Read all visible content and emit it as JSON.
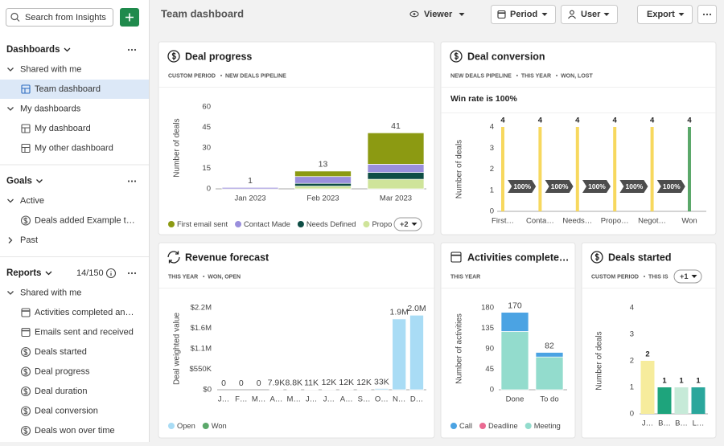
{
  "sidebar": {
    "search": "Search from Insights",
    "sections": [
      {
        "title": "Dashboards",
        "groups": [
          {
            "label": "Shared with me",
            "items": [
              "Team dashboard"
            ]
          },
          {
            "label": "My dashboards",
            "items": [
              "My dashboard",
              "My other dashboard"
            ]
          }
        ]
      },
      {
        "title": "Goals",
        "groups": [
          {
            "label": "Active",
            "items": [
              "Deals added Example t…"
            ]
          },
          {
            "label": "Past",
            "items": []
          }
        ]
      },
      {
        "title": "Reports",
        "count": "14/150",
        "groups": [
          {
            "label": "Shared with me",
            "items": [
              "Activities completed an…",
              "Emails sent and received",
              "Deals started",
              "Deal progress",
              "Deal duration",
              "Deal conversion",
              "Deals won over time"
            ]
          }
        ]
      }
    ]
  },
  "header": {
    "title": "Team dashboard",
    "view": "Viewer",
    "buttons": [
      "Period",
      "User",
      "Export"
    ]
  },
  "chart_data": [
    {
      "type": "bar",
      "title": "Deal progress",
      "subtitle": [
        "CUSTOM PERIOD",
        "NEW DEALS PIPELINE"
      ],
      "y_label": "Number of deals",
      "categories": [
        "Jan 2023",
        "Feb 2023",
        "Mar 2023"
      ],
      "series": [
        {
          "name": "First email sent",
          "color": "#8c9a12",
          "values": [
            0,
            4,
            23
          ]
        },
        {
          "name": "Contact Made",
          "color": "#9a8fdc",
          "values": [
            1,
            5,
            6
          ]
        },
        {
          "name": "Needs Defined",
          "color": "#0e4d45",
          "values": [
            0,
            2,
            5
          ]
        },
        {
          "name": "Propo",
          "color": "#cfe49a",
          "values": [
            0,
            2,
            7
          ]
        }
      ],
      "totals": [
        1,
        13,
        41
      ],
      "ylim": [
        0,
        60
      ],
      "yticks": [
        0,
        15,
        30,
        45,
        60
      ],
      "legend_more": "+2"
    },
    {
      "type": "bar",
      "title": "Deal conversion",
      "subtitle": [
        "NEW DEALS PIPELINE",
        "THIS YEAR",
        "WON, LOST"
      ],
      "note": "Win rate is 100%",
      "y_label": "Number of deals",
      "categories": [
        "First…",
        "Conta…",
        "Needs…",
        "Propo…",
        "Negot…",
        "Won"
      ],
      "values": [
        4,
        4,
        4,
        4,
        4,
        4
      ],
      "colors": [
        "#f7d85e",
        "#f7d85e",
        "#f7d85e",
        "#f7d85e",
        "#f7d85e",
        "#5ba86a"
      ],
      "conversion_labels": [
        "100%",
        "100%",
        "100%",
        "100%",
        "100%"
      ],
      "ylim": [
        0,
        4
      ],
      "yticks": [
        0,
        1,
        2,
        3,
        4
      ]
    },
    {
      "type": "bar",
      "title": "Revenue forecast",
      "subtitle": [
        "THIS YEAR",
        "WON, OPEN"
      ],
      "y_label": "Deal weighted value",
      "categories": [
        "J…",
        "F…",
        "M…",
        "A…",
        "M…",
        "J…",
        "J…",
        "A…",
        "S…",
        "O…",
        "N…",
        "D…"
      ],
      "series": [
        {
          "name": "Open",
          "color": "#a9dcf5",
          "values": [
            0,
            0,
            0,
            7900,
            8800,
            11000,
            12000,
            12000,
            12000,
            33000,
            1900000,
            2000000
          ],
          "value_labels": [
            "0",
            "0",
            "0",
            "7.9K",
            "8.8K",
            "11K",
            "12K",
            "12K",
            "12K",
            "33K",
            "1.9M",
            "2.0M"
          ]
        },
        {
          "name": "Won",
          "color": "#5ba86a",
          "values": [
            0,
            0,
            0,
            0,
            0,
            0,
            0,
            0,
            0,
            0,
            0,
            0
          ]
        }
      ],
      "ylim": [
        0,
        2200000
      ],
      "yticks": [
        {
          "value": 0,
          "label": "$0"
        },
        {
          "value": 550000,
          "label": "$550K"
        },
        {
          "value": 1100000,
          "label": "$1.1M"
        },
        {
          "value": 1650000,
          "label": "$1.6M"
        },
        {
          "value": 2200000,
          "label": "$2.2M"
        }
      ]
    },
    {
      "type": "bar",
      "title": "Activities complete…",
      "subtitle": [
        "THIS YEAR"
      ],
      "y_label": "Number of activities",
      "categories": [
        "Done",
        "To do"
      ],
      "series": [
        {
          "name": "Call",
          "color": "#4ba3e3",
          "values": [
            42,
            10
          ]
        },
        {
          "name": "Deadline",
          "color": "#ea6a92",
          "values": [
            0,
            0
          ]
        },
        {
          "name": "Meeting",
          "color": "#93dccd",
          "values": [
            128,
            72
          ]
        }
      ],
      "totals": [
        170,
        82
      ],
      "ylim": [
        0,
        180
      ],
      "yticks": [
        0,
        45,
        90,
        135,
        180
      ]
    },
    {
      "type": "bar",
      "title": "Deals started",
      "subtitle": [
        "CUSTOM PERIOD",
        "THIS IS"
      ],
      "subtitle_more": "+1",
      "y_label": "Number of deals",
      "categories": [
        "J…",
        "B…",
        "B…",
        "L…"
      ],
      "values": [
        2,
        1,
        1,
        1
      ],
      "colors": [
        "#f6ec9c",
        "#1ea47c",
        "#c6ead8",
        "#2aa79c"
      ],
      "ylim": [
        0,
        4
      ],
      "yticks": [
        0,
        1,
        2,
        3,
        4
      ]
    }
  ]
}
